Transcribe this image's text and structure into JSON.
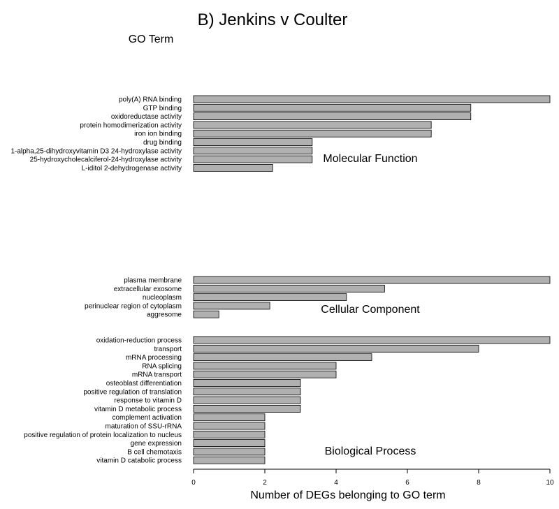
{
  "chart_data": {
    "type": "bar",
    "orientation": "horizontal",
    "title": "B) Jenkins v Coulter",
    "ylabel": "GO Term",
    "xlabel": "Number of DEGs belonging to GO term",
    "xlim": [
      0,
      10
    ],
    "xticks": [
      0,
      2,
      4,
      6,
      8,
      10
    ],
    "bar_color": "#b0b0b0",
    "groups": [
      {
        "name": "Molecular Function",
        "categories": [
          "poly(A) RNA binding",
          "GTP binding",
          "oxidoreductase activity",
          "protein homodimerization activity",
          "iron ion binding",
          "drug binding",
          "1-alpha,25-dihydroxyvitamin D3 24-hydroxylase activity",
          "25-hydroxycholecalciferol-24-hydroxylase activity",
          "L-iditol 2-dehydrogenase activity"
        ],
        "values": [
          10,
          7.78,
          7.78,
          6.67,
          6.67,
          3.33,
          3.33,
          3.33,
          2.22
        ]
      },
      {
        "name": "Cellular Component",
        "categories": [
          "plasma membrane",
          "extracellular exosome",
          "nucleoplasm",
          "perinuclear region of cytoplasm",
          "aggresome"
        ],
        "values": [
          10,
          5.36,
          4.29,
          2.14,
          0.71
        ]
      },
      {
        "name": "Biological Process",
        "categories": [
          "oxidation-reduction process",
          "transport",
          "mRNA processing",
          "RNA splicing",
          "mRNA transport",
          "osteoblast differentiation",
          "positive regulation of translation",
          "response to vitamin D",
          "vitamin D metabolic process",
          "complement activation",
          "maturation of SSU-rRNA",
          "positive regulation of protein localization to nucleus",
          "gene expression",
          "B cell chemotaxis",
          "vitamin D catabolic process"
        ],
        "values": [
          10,
          8,
          5,
          4,
          4,
          3,
          3,
          3,
          3,
          2,
          2,
          2,
          2,
          2,
          2
        ]
      }
    ]
  }
}
